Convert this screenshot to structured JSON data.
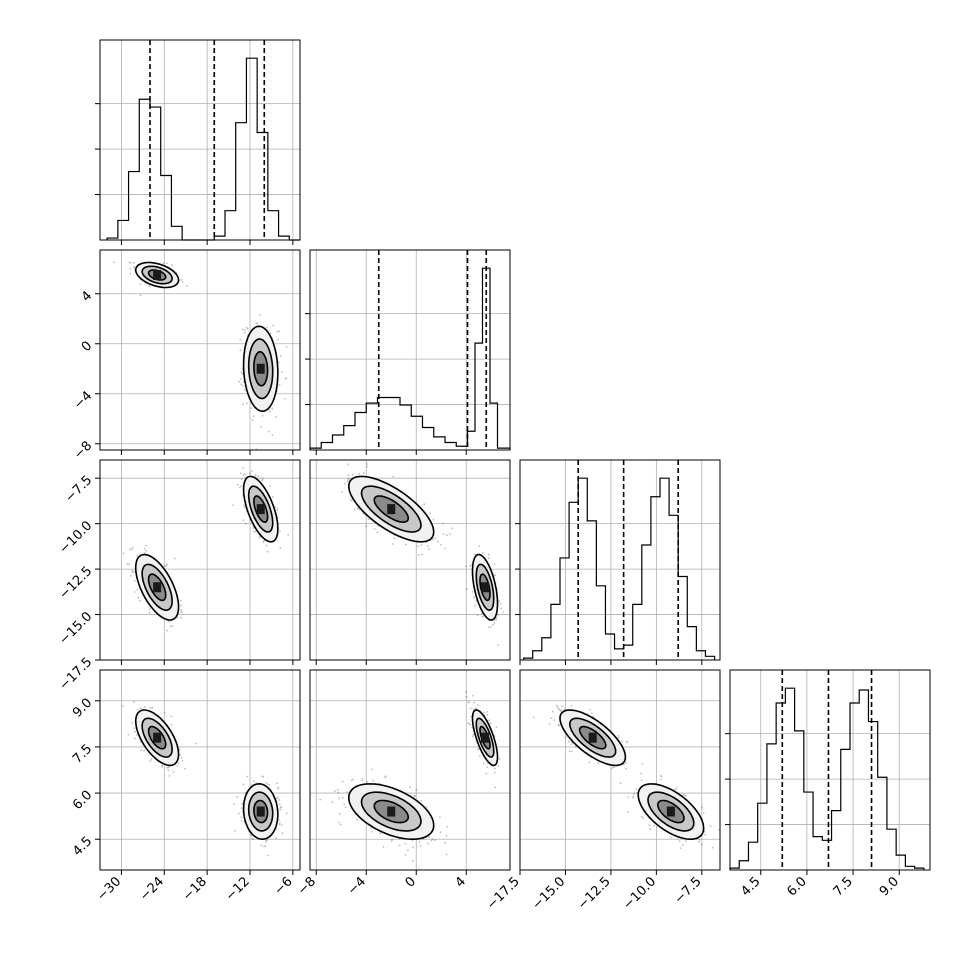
{
  "chart_data": {
    "type": "corner",
    "n_params": 4,
    "grid": true,
    "params": [
      {
        "range": [
          -33,
          -5
        ],
        "ticks": [
          -30,
          -24,
          -18,
          -12,
          -6
        ],
        "tick_labels": [
          "−30",
          "−24",
          "−18",
          "−12",
          "−6"
        ],
        "histogram": {
          "edges": [
            -32,
            -30.5,
            -29,
            -27.5,
            -26,
            -24.5,
            -23,
            -21.5,
            -20,
            -18.5,
            -17,
            -15.5,
            -14,
            -12.5,
            -11,
            -9.5,
            -8,
            -6.5,
            -5
          ],
          "counts": [
            0.01,
            0.1,
            0.35,
            0.72,
            0.68,
            0.33,
            0.07,
            0.0,
            0.0,
            0.0,
            0.02,
            0.15,
            0.6,
            0.93,
            0.55,
            0.15,
            0.02,
            0.0
          ]
        },
        "quantiles": [
          -26.0,
          -17.0,
          -10.0
        ]
      },
      {
        "range": [
          -8.5,
          7.5
        ],
        "ticks": [
          -8,
          -4,
          0,
          4
        ],
        "tick_labels": [
          "−8",
          "−4",
          "0",
          "4"
        ],
        "histogram": {
          "edges": [
            -8.5,
            -7.6,
            -6.7,
            -5.8,
            -4.9,
            -4.0,
            -3.1,
            -2.2,
            -1.3,
            -0.4,
            0.5,
            1.4,
            2.3,
            3.2,
            4.1,
            4.7,
            5.3,
            5.9,
            6.5,
            7.5
          ],
          "counts": [
            0.01,
            0.04,
            0.08,
            0.13,
            0.2,
            0.25,
            0.28,
            0.28,
            0.24,
            0.18,
            0.12,
            0.07,
            0.04,
            0.02,
            0.1,
            0.57,
            0.97,
            0.25,
            0.01
          ]
        },
        "quantiles": [
          -3.0,
          4.1,
          5.6
        ]
      },
      {
        "range": [
          -17.5,
          -6.5
        ],
        "ticks": [
          -17.5,
          -15.0,
          -12.5,
          -10.0,
          -7.5
        ],
        "tick_labels": [
          "−17.5",
          "−15.0",
          "−12.5",
          "−10.0",
          "−7.5"
        ],
        "histogram": {
          "edges": [
            -17.3,
            -16.8,
            -16.3,
            -15.8,
            -15.3,
            -14.8,
            -14.3,
            -13.8,
            -13.3,
            -12.8,
            -12.3,
            -11.8,
            -11.3,
            -10.8,
            -10.3,
            -9.8,
            -9.3,
            -8.8,
            -8.3,
            -7.8,
            -7.3,
            -6.8
          ],
          "counts": [
            0.01,
            0.05,
            0.12,
            0.3,
            0.55,
            0.85,
            0.98,
            0.75,
            0.4,
            0.14,
            0.06,
            0.08,
            0.3,
            0.62,
            0.88,
            0.98,
            0.78,
            0.45,
            0.18,
            0.05,
            0.02
          ]
        },
        "quantiles": [
          -14.3,
          -11.8,
          -8.8
        ]
      },
      {
        "range": [
          3.5,
          10.0
        ],
        "ticks": [
          4.5,
          6.0,
          7.5,
          9.0
        ],
        "tick_labels": [
          "4.5",
          "6.0",
          "7.5",
          "9.0"
        ],
        "histogram": {
          "edges": [
            3.5,
            3.8,
            4.1,
            4.4,
            4.7,
            5.0,
            5.3,
            5.6,
            5.9,
            6.2,
            6.5,
            6.8,
            7.1,
            7.4,
            7.7,
            8.0,
            8.3,
            8.6,
            8.9,
            9.2,
            9.5,
            9.8
          ],
          "counts": [
            0.01,
            0.05,
            0.15,
            0.36,
            0.68,
            0.9,
            0.98,
            0.75,
            0.42,
            0.18,
            0.16,
            0.32,
            0.65,
            0.9,
            0.97,
            0.8,
            0.5,
            0.22,
            0.08,
            0.02,
            0.01
          ]
        },
        "quantiles": [
          5.2,
          6.7,
          8.1
        ]
      }
    ],
    "modes": [
      {
        "weight": 0.45,
        "mean": [
          -25.0,
          5.5,
          -13.5,
          7.8
        ],
        "std": [
          1.5,
          0.5,
          0.9,
          0.45
        ]
      },
      {
        "weight": 0.55,
        "mean": [
          -10.5,
          -2.0,
          -9.2,
          5.4
        ],
        "std": [
          1.2,
          1.7,
          0.9,
          0.45
        ]
      }
    ]
  }
}
